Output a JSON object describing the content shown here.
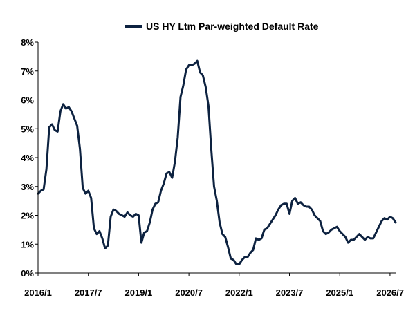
{
  "chart_data": {
    "type": "line",
    "title": "",
    "xlabel": "",
    "ylabel": "",
    "legend": {
      "position": "top-center",
      "entries": [
        "US HY Ltm Par-weighted Default Rate"
      ]
    },
    "grid": false,
    "x_tick_labels": [
      "2016/1",
      "2017/7",
      "2019/1",
      "2020/7",
      "2022/1",
      "2023/7",
      "2025/1",
      "2026/7"
    ],
    "x_range": [
      "2016-01",
      "2026-09"
    ],
    "y_tick_labels": [
      "0%",
      "1%",
      "2%",
      "3%",
      "4%",
      "5%",
      "6%",
      "7%",
      "8%"
    ],
    "ylim": [
      0,
      8
    ],
    "series": [
      {
        "name": "US HY Ltm Par-weighted Default Rate",
        "color": "#0d2240",
        "points": [
          [
            "2016-01",
            2.75
          ],
          [
            "2016-02",
            2.85
          ],
          [
            "2016-03",
            2.9
          ],
          [
            "2016-04",
            3.6
          ],
          [
            "2016-05",
            5.05
          ],
          [
            "2016-06",
            5.15
          ],
          [
            "2016-07",
            4.95
          ],
          [
            "2016-08",
            4.9
          ],
          [
            "2016-09",
            5.6
          ],
          [
            "2016-10",
            5.85
          ],
          [
            "2016-11",
            5.7
          ],
          [
            "2016-12",
            5.75
          ],
          [
            "2017-01",
            5.6
          ],
          [
            "2017-02",
            5.35
          ],
          [
            "2017-03",
            5.1
          ],
          [
            "2017-04",
            4.3
          ],
          [
            "2017-05",
            2.95
          ],
          [
            "2017-06",
            2.75
          ],
          [
            "2017-07",
            2.85
          ],
          [
            "2017-08",
            2.6
          ],
          [
            "2017-09",
            1.55
          ],
          [
            "2017-10",
            1.35
          ],
          [
            "2017-11",
            1.45
          ],
          [
            "2017-12",
            1.2
          ],
          [
            "2018-01",
            0.85
          ],
          [
            "2018-02",
            0.95
          ],
          [
            "2018-03",
            1.95
          ],
          [
            "2018-04",
            2.2
          ],
          [
            "2018-05",
            2.15
          ],
          [
            "2018-06",
            2.05
          ],
          [
            "2018-07",
            2.0
          ],
          [
            "2018-08",
            1.95
          ],
          [
            "2018-09",
            2.1
          ],
          [
            "2018-10",
            2.0
          ],
          [
            "2018-11",
            1.95
          ],
          [
            "2018-12",
            2.05
          ],
          [
            "2019-01",
            2.0
          ],
          [
            "2019-02",
            1.05
          ],
          [
            "2019-03",
            1.4
          ],
          [
            "2019-04",
            1.45
          ],
          [
            "2019-05",
            1.75
          ],
          [
            "2019-06",
            2.2
          ],
          [
            "2019-07",
            2.4
          ],
          [
            "2019-08",
            2.45
          ],
          [
            "2019-09",
            2.85
          ],
          [
            "2019-10",
            3.1
          ],
          [
            "2019-11",
            3.45
          ],
          [
            "2019-12",
            3.5
          ],
          [
            "2020-01",
            3.3
          ],
          [
            "2020-02",
            3.85
          ],
          [
            "2020-03",
            4.7
          ],
          [
            "2020-04",
            6.1
          ],
          [
            "2020-05",
            6.5
          ],
          [
            "2020-06",
            7.05
          ],
          [
            "2020-07",
            7.2
          ],
          [
            "2020-08",
            7.2
          ],
          [
            "2020-09",
            7.25
          ],
          [
            "2020-10",
            7.35
          ],
          [
            "2020-11",
            6.95
          ],
          [
            "2020-12",
            6.85
          ],
          [
            "2021-01",
            6.45
          ],
          [
            "2021-02",
            5.8
          ],
          [
            "2021-03",
            4.3
          ],
          [
            "2021-04",
            3.0
          ],
          [
            "2021-05",
            2.5
          ],
          [
            "2021-06",
            1.75
          ],
          [
            "2021-07",
            1.35
          ],
          [
            "2021-08",
            1.25
          ],
          [
            "2021-09",
            0.9
          ],
          [
            "2021-10",
            0.5
          ],
          [
            "2021-11",
            0.45
          ],
          [
            "2021-12",
            0.3
          ],
          [
            "2022-01",
            0.3
          ],
          [
            "2022-02",
            0.45
          ],
          [
            "2022-03",
            0.55
          ],
          [
            "2022-04",
            0.55
          ],
          [
            "2022-05",
            0.7
          ],
          [
            "2022-06",
            0.8
          ],
          [
            "2022-07",
            1.2
          ],
          [
            "2022-08",
            1.15
          ],
          [
            "2022-09",
            1.2
          ],
          [
            "2022-10",
            1.5
          ],
          [
            "2022-11",
            1.55
          ],
          [
            "2022-12",
            1.7
          ],
          [
            "2023-01",
            1.85
          ],
          [
            "2023-02",
            2.0
          ],
          [
            "2023-03",
            2.2
          ],
          [
            "2023-04",
            2.35
          ],
          [
            "2023-05",
            2.4
          ],
          [
            "2023-06",
            2.4
          ],
          [
            "2023-07",
            2.05
          ],
          [
            "2023-08",
            2.5
          ],
          [
            "2023-09",
            2.6
          ],
          [
            "2023-10",
            2.4
          ],
          [
            "2023-11",
            2.45
          ],
          [
            "2023-12",
            2.35
          ],
          [
            "2024-01",
            2.3
          ],
          [
            "2024-02",
            2.3
          ],
          [
            "2024-03",
            2.2
          ],
          [
            "2024-04",
            2.0
          ],
          [
            "2024-05",
            1.9
          ],
          [
            "2024-06",
            1.8
          ],
          [
            "2024-07",
            1.45
          ],
          [
            "2024-08",
            1.35
          ],
          [
            "2024-09",
            1.4
          ],
          [
            "2024-10",
            1.5
          ],
          [
            "2024-11",
            1.55
          ],
          [
            "2024-12",
            1.6
          ],
          [
            "2025-01",
            1.45
          ],
          [
            "2025-02",
            1.35
          ],
          [
            "2025-03",
            1.25
          ],
          [
            "2025-04",
            1.05
          ],
          [
            "2025-05",
            1.15
          ],
          [
            "2025-06",
            1.15
          ],
          [
            "2025-07",
            1.25
          ],
          [
            "2025-08",
            1.35
          ],
          [
            "2025-09",
            1.25
          ],
          [
            "2025-10",
            1.15
          ],
          [
            "2025-11",
            1.25
          ],
          [
            "2025-12",
            1.2
          ],
          [
            "2026-01",
            1.2
          ],
          [
            "2026-02",
            1.4
          ],
          [
            "2026-03",
            1.6
          ],
          [
            "2026-04",
            1.8
          ],
          [
            "2026-05",
            1.9
          ],
          [
            "2026-06",
            1.85
          ],
          [
            "2026-07",
            1.95
          ],
          [
            "2026-08",
            1.9
          ],
          [
            "2026-09",
            1.75
          ]
        ]
      }
    ]
  }
}
